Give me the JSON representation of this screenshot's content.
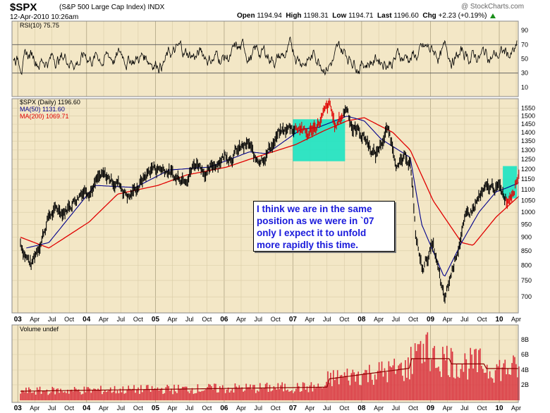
{
  "header": {
    "symbol": "$SPX",
    "description": "(S&P 500 Large Cap Index) INDX",
    "date": "12-Apr-2010 10:26am",
    "open_label": "Open",
    "open": "1194.94",
    "high_label": "High",
    "high": "1198.31",
    "low_label": "Low",
    "low": "1194.71",
    "last_label": "Last",
    "last": "1196.60",
    "chg_label": "Chg",
    "chg": "+2.23 (+0.19%)",
    "brand": "@ StockCharts.com",
    "brand_icon": "up-arrow-icon"
  },
  "colors": {
    "panel_bg": "#F3E7C6",
    "price": "#000000",
    "ma50": "#00008B",
    "ma200": "#E00000",
    "highlight": "#1CE3C2",
    "volume": "#D9303C",
    "callout_text": "#1a1adb"
  },
  "callout": {
    "lines": [
      "I think we are in the same",
      "position as we were in `07",
      "only I expect it to unfold",
      "more rapidly this time."
    ]
  },
  "chart_data": [
    {
      "type": "line",
      "panel": "rsi",
      "legend": [
        "RSI(10) 75.75"
      ],
      "ylim": [
        0,
        100
      ],
      "y_ticks": [
        10,
        30,
        50,
        70,
        90
      ],
      "reference_lines": [
        30,
        70
      ],
      "x_range": [
        "2002-12-01",
        "2010-04-12"
      ],
      "summary": "RSI(10) oscillating between roughly 20 and 85 throughout 2003-2010; last value 75.75"
    },
    {
      "type": "line",
      "panel": "price",
      "legend": [
        "$SPX (Daily) 1196.60",
        "MA(50) 1131.60",
        "MA(200) 1069.71"
      ],
      "y_scale": "log",
      "ylim": [
        660,
        1600
      ],
      "y_ticks": [
        700,
        750,
        800,
        850,
        900,
        950,
        1000,
        1050,
        1100,
        1150,
        1200,
        1250,
        1300,
        1350,
        1400,
        1450,
        1500,
        1550
      ],
      "x_ticks": [
        "03",
        "Apr",
        "Jul",
        "Oct",
        "04",
        "Apr",
        "Jul",
        "Oct",
        "05",
        "Apr",
        "Jul",
        "Oct",
        "06",
        "Apr",
        "Jul",
        "Oct",
        "07",
        "Apr",
        "Jul",
        "Oct",
        "08",
        "Apr",
        "Jul",
        "Oct",
        "09",
        "Apr",
        "Jul",
        "Oct",
        "10",
        "Apr"
      ],
      "series": [
        {
          "name": "$SPX (Daily) 1196.60",
          "x": [
            "2003-01",
            "2003-03",
            "2003-06",
            "2003-09",
            "2003-12",
            "2004-03",
            "2004-06",
            "2004-08",
            "2004-12",
            "2005-03",
            "2005-04",
            "2005-08",
            "2005-10",
            "2005-12",
            "2006-05",
            "2006-06",
            "2006-10",
            "2006-12",
            "2007-02",
            "2007-03",
            "2007-07",
            "2007-08",
            "2007-10",
            "2007-11",
            "2008-01",
            "2008-03",
            "2008-05",
            "2008-07",
            "2008-09",
            "2008-10",
            "2008-11",
            "2009-01",
            "2009-03",
            "2009-06",
            "2009-09",
            "2009-12",
            "2010-02",
            "2010-04"
          ],
          "y": [
            880,
            800,
            990,
            1020,
            1110,
            1150,
            1140,
            1070,
            1210,
            1200,
            1150,
            1240,
            1180,
            1270,
            1320,
            1230,
            1380,
            1420,
            1450,
            1380,
            1550,
            1420,
            1565,
            1440,
            1380,
            1270,
            1420,
            1220,
            1250,
            900,
            790,
            870,
            676,
            930,
            1060,
            1115,
            1060,
            1197
          ]
        },
        {
          "name": "MA(50) 1131.60",
          "x": [
            "2003-02",
            "2003-06",
            "2004-02",
            "2004-09",
            "2005-03",
            "2005-10",
            "2006-05",
            "2006-08",
            "2007-02",
            "2007-05",
            "2007-10",
            "2008-01",
            "2008-04",
            "2008-07",
            "2008-09",
            "2008-11",
            "2009-03",
            "2009-06",
            "2009-09",
            "2009-12",
            "2010-02",
            "2010-04"
          ],
          "y": [
            860,
            880,
            1120,
            1110,
            1195,
            1210,
            1290,
            1280,
            1420,
            1430,
            1500,
            1470,
            1360,
            1300,
            1260,
            950,
            760,
            880,
            1000,
            1090,
            1110,
            1132
          ]
        },
        {
          "name": "MA(200) 1069.71",
          "x": [
            "2003-01",
            "2003-06",
            "2004-01",
            "2004-06",
            "2005-01",
            "2005-06",
            "2006-01",
            "2006-06",
            "2007-01",
            "2007-06",
            "2007-10",
            "2008-01",
            "2008-06",
            "2008-09",
            "2009-01",
            "2009-06",
            "2009-08",
            "2009-12",
            "2010-04"
          ],
          "y": [
            900,
            860,
            960,
            1080,
            1120,
            1170,
            1210,
            1260,
            1330,
            1410,
            1470,
            1490,
            1400,
            1300,
            1050,
            880,
            870,
            980,
            1070
          ]
        }
      ]
    },
    {
      "type": "bar",
      "panel": "volume",
      "legend": [
        "Volume undef"
      ],
      "y_ticks": [
        "2B",
        "4B",
        "6B",
        "8B"
      ],
      "summary": "Daily volume roughly 1-2B through 2003-2007, rising to about 4-6B in 2008-2009 with spikes near 9B in late 2008, easing to about 4B in 2010"
    }
  ]
}
